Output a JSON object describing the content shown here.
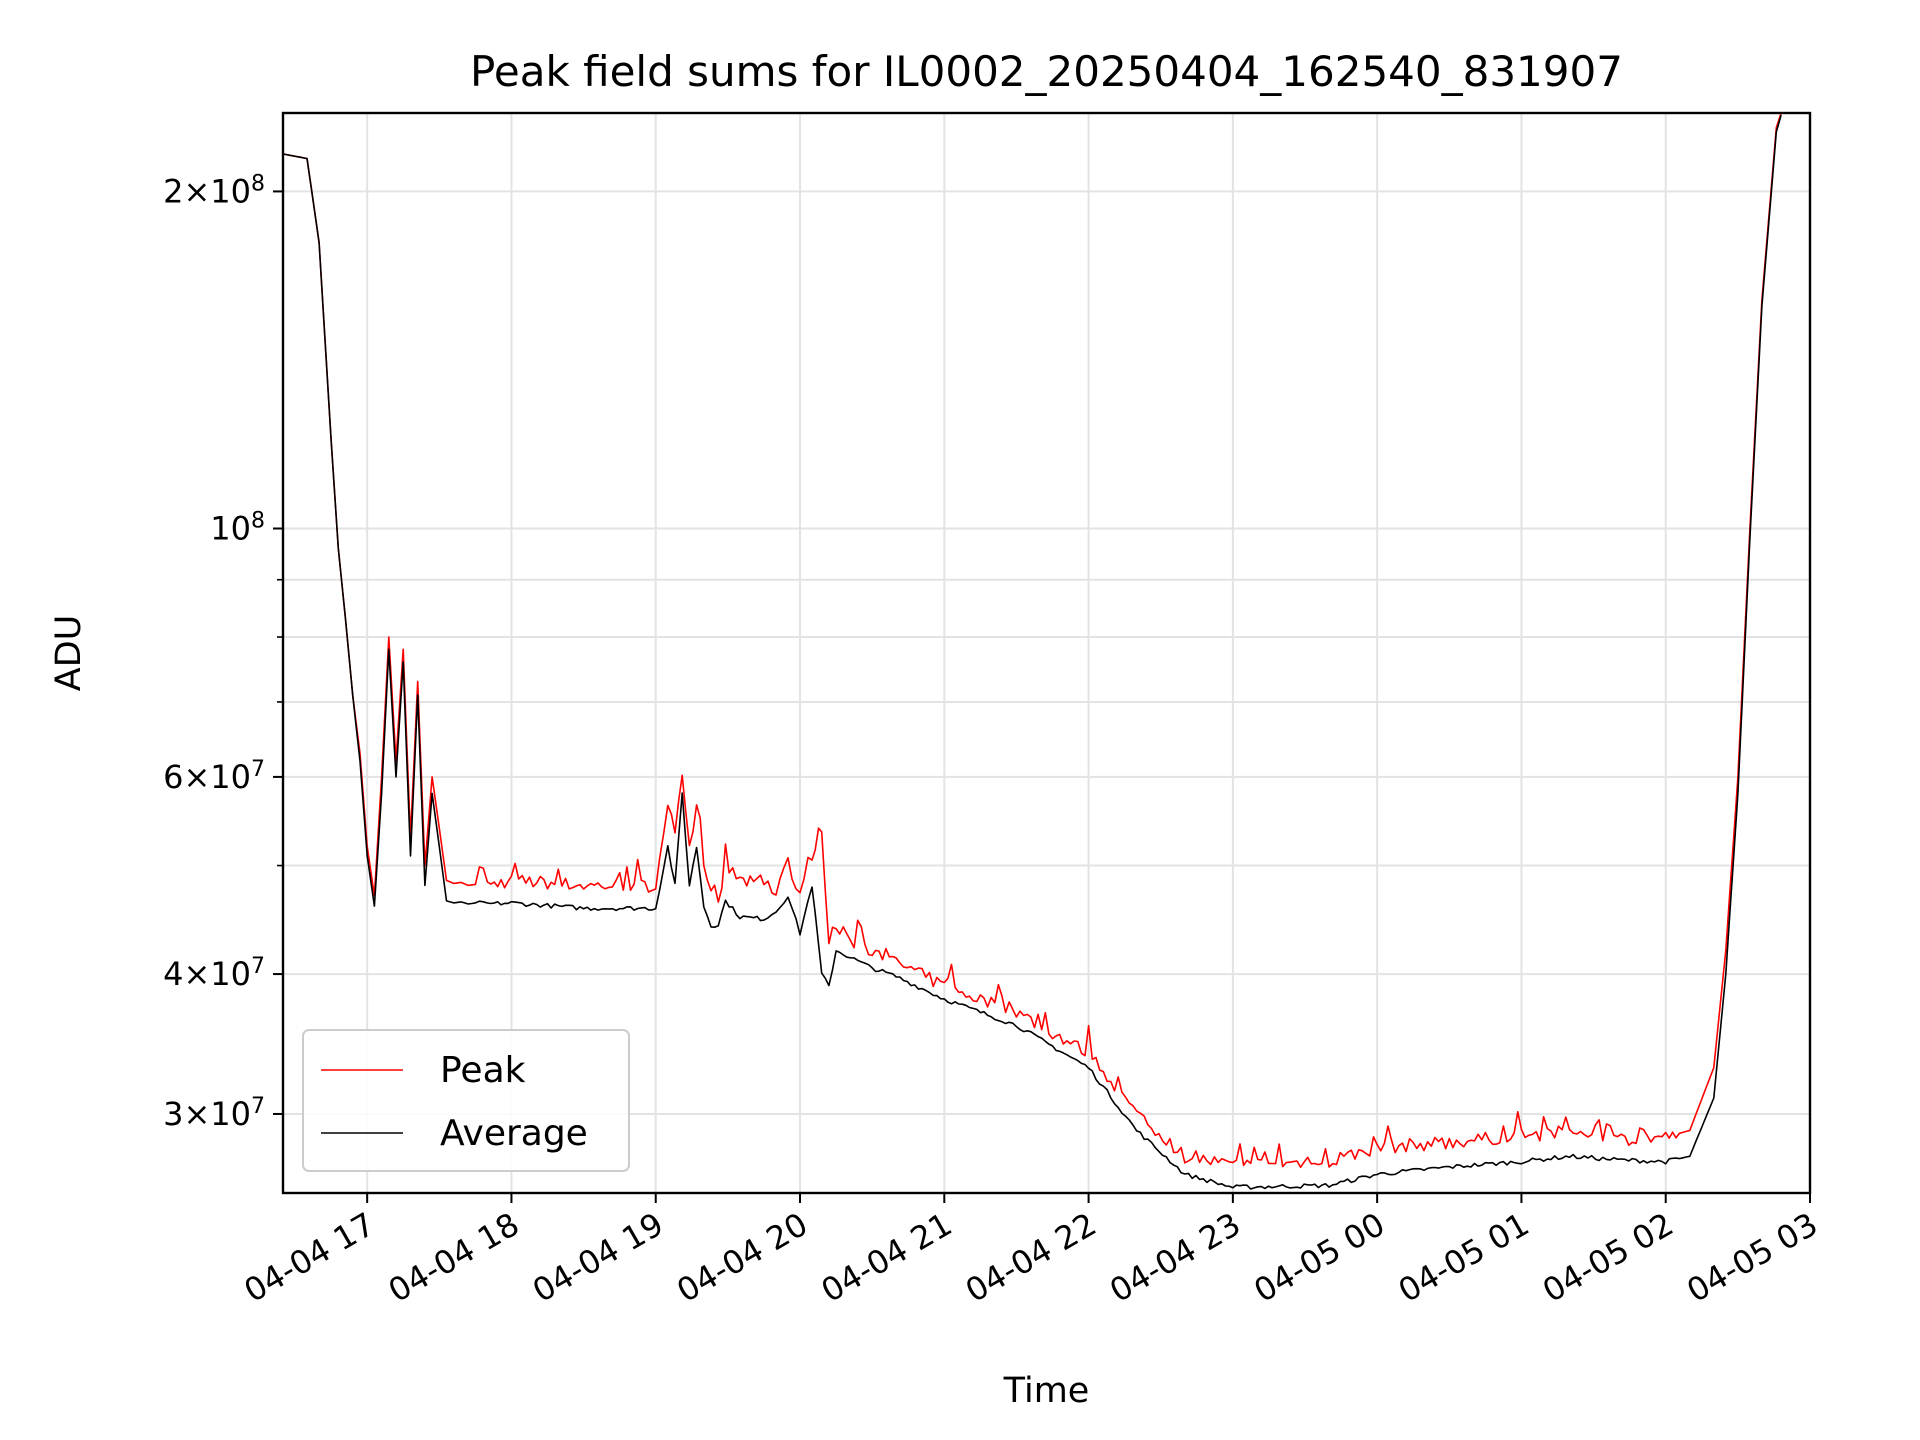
{
  "chart_data": {
    "type": "line",
    "title": "Peak field sums for IL0002_20250404_162540_831907",
    "xlabel": "Time",
    "ylabel": "ADU",
    "yscale": "log",
    "xlim": [
      "2025-04-04 16:25",
      "2025-04-05 03:00"
    ],
    "ylim": [
      25500000,
      235000000
    ],
    "grid": true,
    "legend_position": "lower-left",
    "x_tick_labels": [
      "04-04 17",
      "04-04 18",
      "04-04 19",
      "04-04 20",
      "04-04 21",
      "04-04 22",
      "04-04 23",
      "04-05 00",
      "04-05 01",
      "04-05 02",
      "04-05 03"
    ],
    "y_tick_labels": [
      {
        "value": 200000000,
        "mantissa": "2",
        "exponent": "8"
      },
      {
        "value": 100000000,
        "mantissa": "",
        "exponent": "8"
      },
      {
        "value": 60000000,
        "mantissa": "6",
        "exponent": "7"
      },
      {
        "value": 40000000,
        "mantissa": "4",
        "exponent": "7"
      },
      {
        "value": 30000000,
        "mantissa": "3",
        "exponent": "7"
      }
    ],
    "x": [
      "2025-04-04 16:25",
      "2025-04-04 16:35",
      "2025-04-04 16:40",
      "2025-04-04 16:45",
      "2025-04-04 16:48",
      "2025-04-04 16:51",
      "2025-04-04 16:54",
      "2025-04-04 16:57",
      "2025-04-04 17:00",
      "2025-04-04 17:03",
      "2025-04-04 17:06",
      "2025-04-04 17:09",
      "2025-04-04 17:12",
      "2025-04-04 17:15",
      "2025-04-04 17:18",
      "2025-04-04 17:21",
      "2025-04-04 17:24",
      "2025-04-04 17:27",
      "2025-04-04 17:30",
      "2025-04-04 17:33",
      "2025-04-04 17:36",
      "2025-04-04 17:39",
      "2025-04-04 17:42",
      "2025-04-04 17:45",
      "2025-04-04 17:50",
      "2025-04-04 18:00",
      "2025-04-04 18:30",
      "2025-04-04 19:00",
      "2025-04-04 19:05",
      "2025-04-04 19:08",
      "2025-04-04 19:11",
      "2025-04-04 19:14",
      "2025-04-04 19:17",
      "2025-04-04 19:20",
      "2025-04-04 19:23",
      "2025-04-04 19:26",
      "2025-04-04 19:29",
      "2025-04-04 19:35",
      "2025-04-04 19:45",
      "2025-04-04 19:50",
      "2025-04-04 19:55",
      "2025-04-04 20:00",
      "2025-04-04 20:05",
      "2025-04-04 20:09",
      "2025-04-04 20:12",
      "2025-04-04 20:15",
      "2025-04-04 20:30",
      "2025-04-04 20:40",
      "2025-04-04 21:00",
      "2025-04-04 21:30",
      "2025-04-04 22:00",
      "2025-04-04 22:20",
      "2025-04-04 22:40",
      "2025-04-04 23:00",
      "2025-04-04 23:40",
      "2025-04-05 00:00",
      "2025-04-05 00:30",
      "2025-04-05 01:00",
      "2025-04-05 01:20",
      "2025-04-05 01:40",
      "2025-04-05 02:00",
      "2025-04-05 02:10",
      "2025-04-05 02:20",
      "2025-04-05 02:25",
      "2025-04-05 02:30",
      "2025-04-05 02:35",
      "2025-04-05 02:40",
      "2025-04-05 02:46",
      "2025-04-05 02:48"
    ],
    "series": [
      {
        "name": "Peak",
        "color": "#ff0000",
        "values": [
          216000000,
          214000000,
          180000000,
          120000000,
          96000000,
          83000000,
          71000000,
          63000000,
          52000000,
          47000000,
          60000000,
          80000000,
          62000000,
          78000000,
          53000000,
          73000000,
          50000000,
          60000000,
          54000000,
          48500000,
          48200000,
          48300000,
          48000000,
          48100000,
          48000000,
          48500000,
          48000000,
          48000000,
          57000000,
          53000000,
          61000000,
          52000000,
          56000000,
          50000000,
          45500000,
          45800000,
          50000000,
          48500000,
          48000000,
          47500000,
          51000000,
          46000000,
          50000000,
          53000000,
          43000000,
          44000000,
          41500000,
          41000000,
          39000000,
          37000000,
          34000000,
          30000000,
          27500000,
          27000000,
          27200000,
          28000000,
          28300000,
          28700000,
          28900000,
          28500000,
          28600000,
          29000000,
          33000000,
          42000000,
          60000000,
          100000000,
          160000000,
          228000000,
          235000000
        ]
      },
      {
        "name": "Average",
        "color": "#000000",
        "values": [
          216000000,
          214000000,
          180000000,
          120000000,
          96000000,
          83000000,
          71000000,
          62000000,
          51000000,
          46000000,
          58000000,
          78000000,
          60000000,
          76000000,
          51000000,
          71000000,
          48000000,
          58000000,
          52000000,
          46500000,
          46300000,
          46400000,
          46200000,
          46300000,
          46200000,
          46300000,
          45800000,
          45800000,
          52000000,
          48000000,
          58000000,
          48000000,
          52000000,
          46000000,
          44200000,
          44300000,
          46500000,
          45000000,
          44800000,
          45500000,
          47000000,
          43500000,
          48000000,
          40000000,
          39000000,
          42000000,
          40500000,
          39800000,
          38000000,
          36000000,
          33000000,
          29000000,
          26500000,
          25800000,
          25900000,
          26500000,
          26900000,
          27200000,
          27500000,
          27300000,
          27200000,
          27500000,
          31000000,
          40000000,
          58000000,
          98000000,
          158000000,
          226000000,
          234000000
        ]
      }
    ]
  }
}
